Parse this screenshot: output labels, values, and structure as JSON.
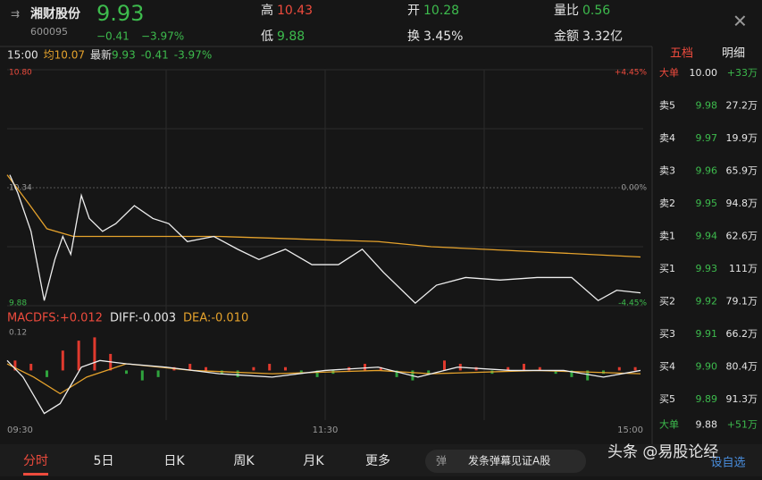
{
  "header": {
    "name": "湘财股份",
    "code": "600095",
    "price": "9.93",
    "change": "−0.41",
    "pct": "−3.97%",
    "stats": [
      {
        "label": "高",
        "value": "10.43"
      },
      {
        "label": "开",
        "value": "10.28"
      },
      {
        "label": "量比",
        "value": "0.56"
      },
      {
        "label": "低",
        "value": "9.88"
      },
      {
        "label": "换",
        "value": "3.45%"
      },
      {
        "label": "金额",
        "value": "3.32亿"
      }
    ]
  },
  "info": {
    "time": "15:00",
    "avg_label": "均",
    "avg": "10.07",
    "latest_label": "最新",
    "latest": "9.93",
    "change": "-0.41",
    "pct": "-3.97%"
  },
  "price_chart": {
    "ylim": [
      9.88,
      10.8
    ],
    "xlim": [
      0,
      240
    ],
    "axis_labels": {
      "top_left": "10.80",
      "top_right": "+4.45%",
      "mid_right": "0.00%",
      "mid_left": "10.34",
      "bottom_left": "9.88",
      "bottom_right": "-4.45%"
    },
    "time_labels": [
      "09:30",
      "11:30",
      "15:00"
    ],
    "price": {
      "x": [
        1,
        4,
        9,
        14,
        18,
        21,
        24,
        28,
        31,
        36,
        41,
        48,
        55,
        61,
        68,
        78,
        87,
        95,
        105,
        115,
        125,
        134,
        142,
        154,
        162,
        173,
        186,
        200,
        213,
        223,
        230,
        239
      ],
      "values": [
        10.39,
        10.32,
        10.17,
        9.9,
        10.06,
        10.15,
        10.08,
        10.31,
        10.22,
        10.17,
        10.2,
        10.27,
        10.22,
        10.2,
        10.13,
        10.15,
        10.1,
        10.06,
        10.1,
        10.04,
        10.04,
        10.1,
        10.01,
        9.89,
        9.96,
        9.99,
        9.98,
        9.99,
        9.99,
        9.9,
        9.94,
        9.93
      ]
    },
    "avg": {
      "x": [
        0,
        8,
        15,
        25,
        80,
        140,
        160,
        200,
        239
      ],
      "values": [
        10.39,
        10.28,
        10.18,
        10.15,
        10.15,
        10.13,
        10.11,
        10.09,
        10.07
      ]
    }
  },
  "macd": {
    "labels": [
      "MACDFS:+0.012",
      "DIFF:-0.003",
      "DEA:-0.010"
    ],
    "top_label": "0.12",
    "ylim": [
      -0.15,
      0.12
    ],
    "hist": [
      0.03,
      0.02,
      -0.02,
      0.06,
      0.09,
      0.1,
      0.05,
      -0.01,
      -0.03,
      -0.02,
      0.01,
      0.02,
      0.01,
      -0.01,
      -0.02,
      0.01,
      0.02,
      0.01,
      -0.01,
      -0.02,
      -0.01,
      0.01,
      0.02,
      0.01,
      -0.02,
      -0.03,
      -0.01,
      0.03,
      0.02,
      0.01,
      -0.01,
      0.01,
      0.02,
      0.01,
      -0.01,
      -0.02,
      -0.03,
      -0.01,
      0.01,
      0.01
    ],
    "diff": {
      "x": [
        0,
        6,
        14,
        20,
        28,
        35,
        45,
        60,
        80,
        100,
        120,
        140,
        155,
        170,
        190,
        210,
        225,
        239
      ],
      "values": [
        0.03,
        -0.02,
        -0.13,
        -0.1,
        0.01,
        0.03,
        0.02,
        0.01,
        -0.01,
        -0.02,
        0,
        0.01,
        -0.02,
        0.01,
        0,
        0,
        -0.02,
        0
      ]
    },
    "dea": {
      "x": [
        0,
        10,
        20,
        30,
        45,
        70,
        100,
        140,
        160,
        200,
        239
      ],
      "values": [
        0.02,
        -0.02,
        -0.07,
        -0.02,
        0.02,
        0,
        -0.01,
        0,
        -0.01,
        0,
        -0.01
      ]
    }
  },
  "order_book": {
    "tabs": [
      "五档",
      "明细"
    ],
    "rows": [
      [
        "大单",
        "10.00",
        "+33万"
      ],
      [
        "卖5",
        "9.98",
        "27.2万"
      ],
      [
        "卖4",
        "9.97",
        "19.9万"
      ],
      [
        "卖3",
        "9.96",
        "65.9万"
      ],
      [
        "卖2",
        "9.95",
        "94.8万"
      ],
      [
        "卖1",
        "9.94",
        "62.6万"
      ],
      [
        "买1",
        "9.93",
        "111万"
      ],
      [
        "买2",
        "9.92",
        "79.1万"
      ],
      [
        "买3",
        "9.91",
        "66.2万"
      ],
      [
        "买4",
        "9.90",
        "80.4万"
      ],
      [
        "买5",
        "9.89",
        "91.3万"
      ],
      [
        "大单",
        "9.88",
        "+51万"
      ]
    ]
  },
  "bottom": {
    "tabs": [
      "分时",
      "5日",
      "日K",
      "周K",
      "月K",
      "更多"
    ],
    "input": "发条弹幕见证A股",
    "watermark": "头条 @易股论经",
    "right": "设自选"
  }
}
